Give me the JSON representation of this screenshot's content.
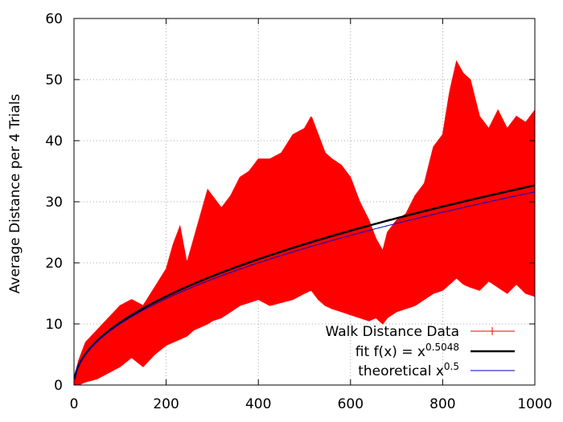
{
  "chart_data": {
    "type": "line",
    "title": "",
    "xlabel": "",
    "ylabel": "Average Distance per 4 Trials",
    "xlim": [
      0,
      1000
    ],
    "ylim": [
      0,
      60
    ],
    "grid": true,
    "x_ticks": [
      "0",
      "200",
      "400",
      "600",
      "800",
      "1000"
    ],
    "y_ticks": [
      "0",
      "10",
      "20",
      "30",
      "40",
      "50",
      "60"
    ],
    "x_tick_values": [
      0,
      200,
      400,
      600,
      800,
      1000
    ],
    "y_tick_values": [
      0,
      10,
      20,
      30,
      40,
      50,
      60
    ],
    "legend_position": "bottom-right",
    "series": [
      {
        "name": "Walk Distance Data",
        "kind": "band",
        "color": "#ff0000",
        "x": [
          0,
          10,
          25,
          50,
          75,
          100,
          125,
          150,
          175,
          200,
          215,
          230,
          245,
          260,
          275,
          290,
          300,
          320,
          340,
          360,
          380,
          400,
          425,
          450,
          475,
          500,
          515,
          530,
          545,
          560,
          580,
          600,
          620,
          640,
          655,
          670,
          680,
          700,
          720,
          740,
          760,
          780,
          800,
          815,
          830,
          845,
          860,
          880,
          900,
          920,
          940,
          960,
          980,
          1000
        ],
        "upper": [
          1,
          4,
          7,
          9,
          11,
          13,
          14,
          13,
          16,
          19,
          23,
          26,
          20,
          24,
          28,
          32,
          31,
          29,
          31,
          34,
          35,
          37,
          37,
          38,
          41,
          42,
          44,
          41,
          38,
          37,
          36,
          34,
          30,
          27,
          24,
          22,
          25,
          27,
          28,
          31,
          33,
          39,
          41,
          48,
          53,
          51,
          50,
          44,
          42,
          45,
          42,
          44,
          43,
          45
        ],
        "lower": [
          0,
          0,
          0.5,
          1,
          2,
          3,
          4.5,
          3,
          5,
          6.5,
          7,
          7.5,
          8,
          9,
          9.5,
          10,
          10.5,
          11,
          12,
          13,
          13.5,
          14,
          13,
          13.5,
          14,
          15,
          15.5,
          14,
          13,
          12.5,
          12,
          11.5,
          11,
          10.5,
          11,
          10,
          11,
          12,
          12.5,
          13,
          14,
          15,
          15.5,
          16.5,
          17.5,
          16.5,
          16,
          15.5,
          17,
          16,
          15,
          16.5,
          15,
          14.5
        ]
      },
      {
        "name": "fit f(x) = x^0.5048",
        "kind": "power",
        "exponent": 0.5048,
        "color": "#000000"
      },
      {
        "name": "theoretical x^0.5",
        "kind": "power",
        "exponent": 0.5,
        "color": "#0000cc"
      }
    ]
  },
  "legend": {
    "items": [
      {
        "label": "Walk Distance Data",
        "sup": "",
        "color": "#ff0000"
      },
      {
        "label": "fit f(x) = x",
        "sup": "0.5048",
        "color": "#000000"
      },
      {
        "label": "theoretical x",
        "sup": "0.5",
        "color": "#0000cc"
      }
    ]
  }
}
